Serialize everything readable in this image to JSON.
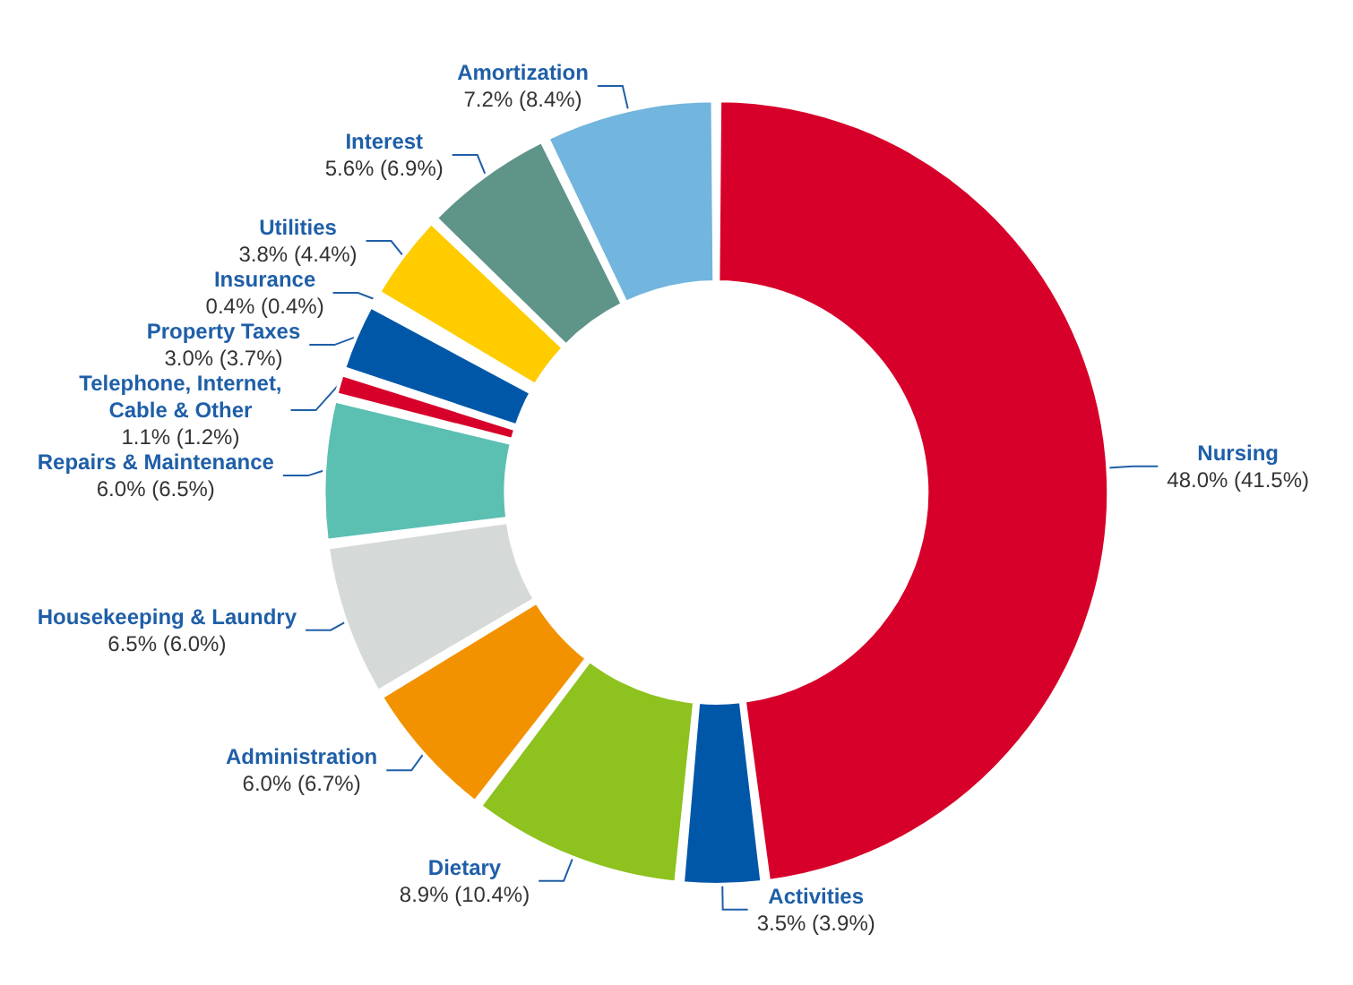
{
  "chart_data": {
    "type": "donut",
    "categories": [
      "Nursing",
      "Activities",
      "Dietary",
      "Administration",
      "Housekeeping & Laundry",
      "Repairs & Maintenance",
      "Telephone, Internet,\nCable & Other",
      "Property Taxes",
      "Insurance",
      "Utilities",
      "Interest",
      "Amortization"
    ],
    "values": [
      48.0,
      3.5,
      8.9,
      6.0,
      6.5,
      6.0,
      1.1,
      3.0,
      0.4,
      3.8,
      5.6,
      7.2
    ],
    "value_labels": [
      "48.0% (41.5%)",
      "3.5% (3.9%)",
      "8.9% (10.4%)",
      "6.0% (6.7%)",
      "6.5% (6.0%)",
      "6.0% (6.5%)",
      "1.1% (1.2%)",
      "3.0% (3.7%)",
      "0.4% (0.4%)",
      "3.8% (4.4%)",
      "5.6% (6.9%)",
      "7.2% (8.4%)"
    ],
    "colors": [
      "#d7002a",
      "#0057a8",
      "#8dc21f",
      "#f39200",
      "#d5d9d8",
      "#5bbfb2",
      "#d7002a",
      "#0057a8",
      "#b04d9a",
      "#ffcc00",
      "#5f9489",
      "#72b5de"
    ],
    "legend": false
  }
}
